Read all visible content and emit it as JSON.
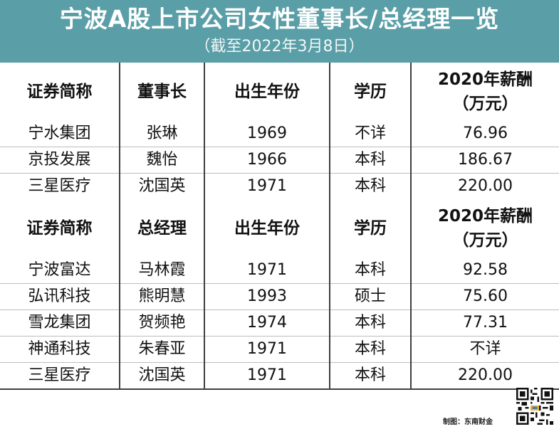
{
  "title": "宁波A股上市公司女性董事长/总经理一览",
  "subtitle": "（截至2022年3月8日）",
  "chairman_table": {
    "headers": [
      "证券简称",
      "董事长",
      "出生年份",
      "学历",
      "2020年薪酬",
      "（万元）"
    ],
    "rows": [
      [
        "宁水集团",
        "张琳",
        "1969",
        "不详",
        "76.96"
      ],
      [
        "京投发展",
        "魏怡",
        "1966",
        "本科",
        "186.67"
      ],
      [
        "三星医疗",
        "沈国英",
        "1971",
        "本科",
        "220.00"
      ]
    ]
  },
  "manager_table": {
    "headers": [
      "证券简称",
      "总经理",
      "出生年份",
      "学历",
      "2020年薪酬",
      "（万元）"
    ],
    "rows": [
      [
        "宁波富达",
        "马林霞",
        "1971",
        "本科",
        "92.58"
      ],
      [
        "弘讯科技",
        "熊明慧",
        "1993",
        "硕士",
        "75.60"
      ],
      [
        "雪龙集团",
        "贺频艳",
        "1974",
        "本科",
        "77.31"
      ],
      [
        "神通科技",
        "朱春亚",
        "1971",
        "本科",
        "不详"
      ],
      [
        "三星医疗",
        "沈国英",
        "1971",
        "本科",
        "220.00"
      ]
    ]
  },
  "credit": "制图：东南财金",
  "qr_icon": "qr-code-icon"
}
